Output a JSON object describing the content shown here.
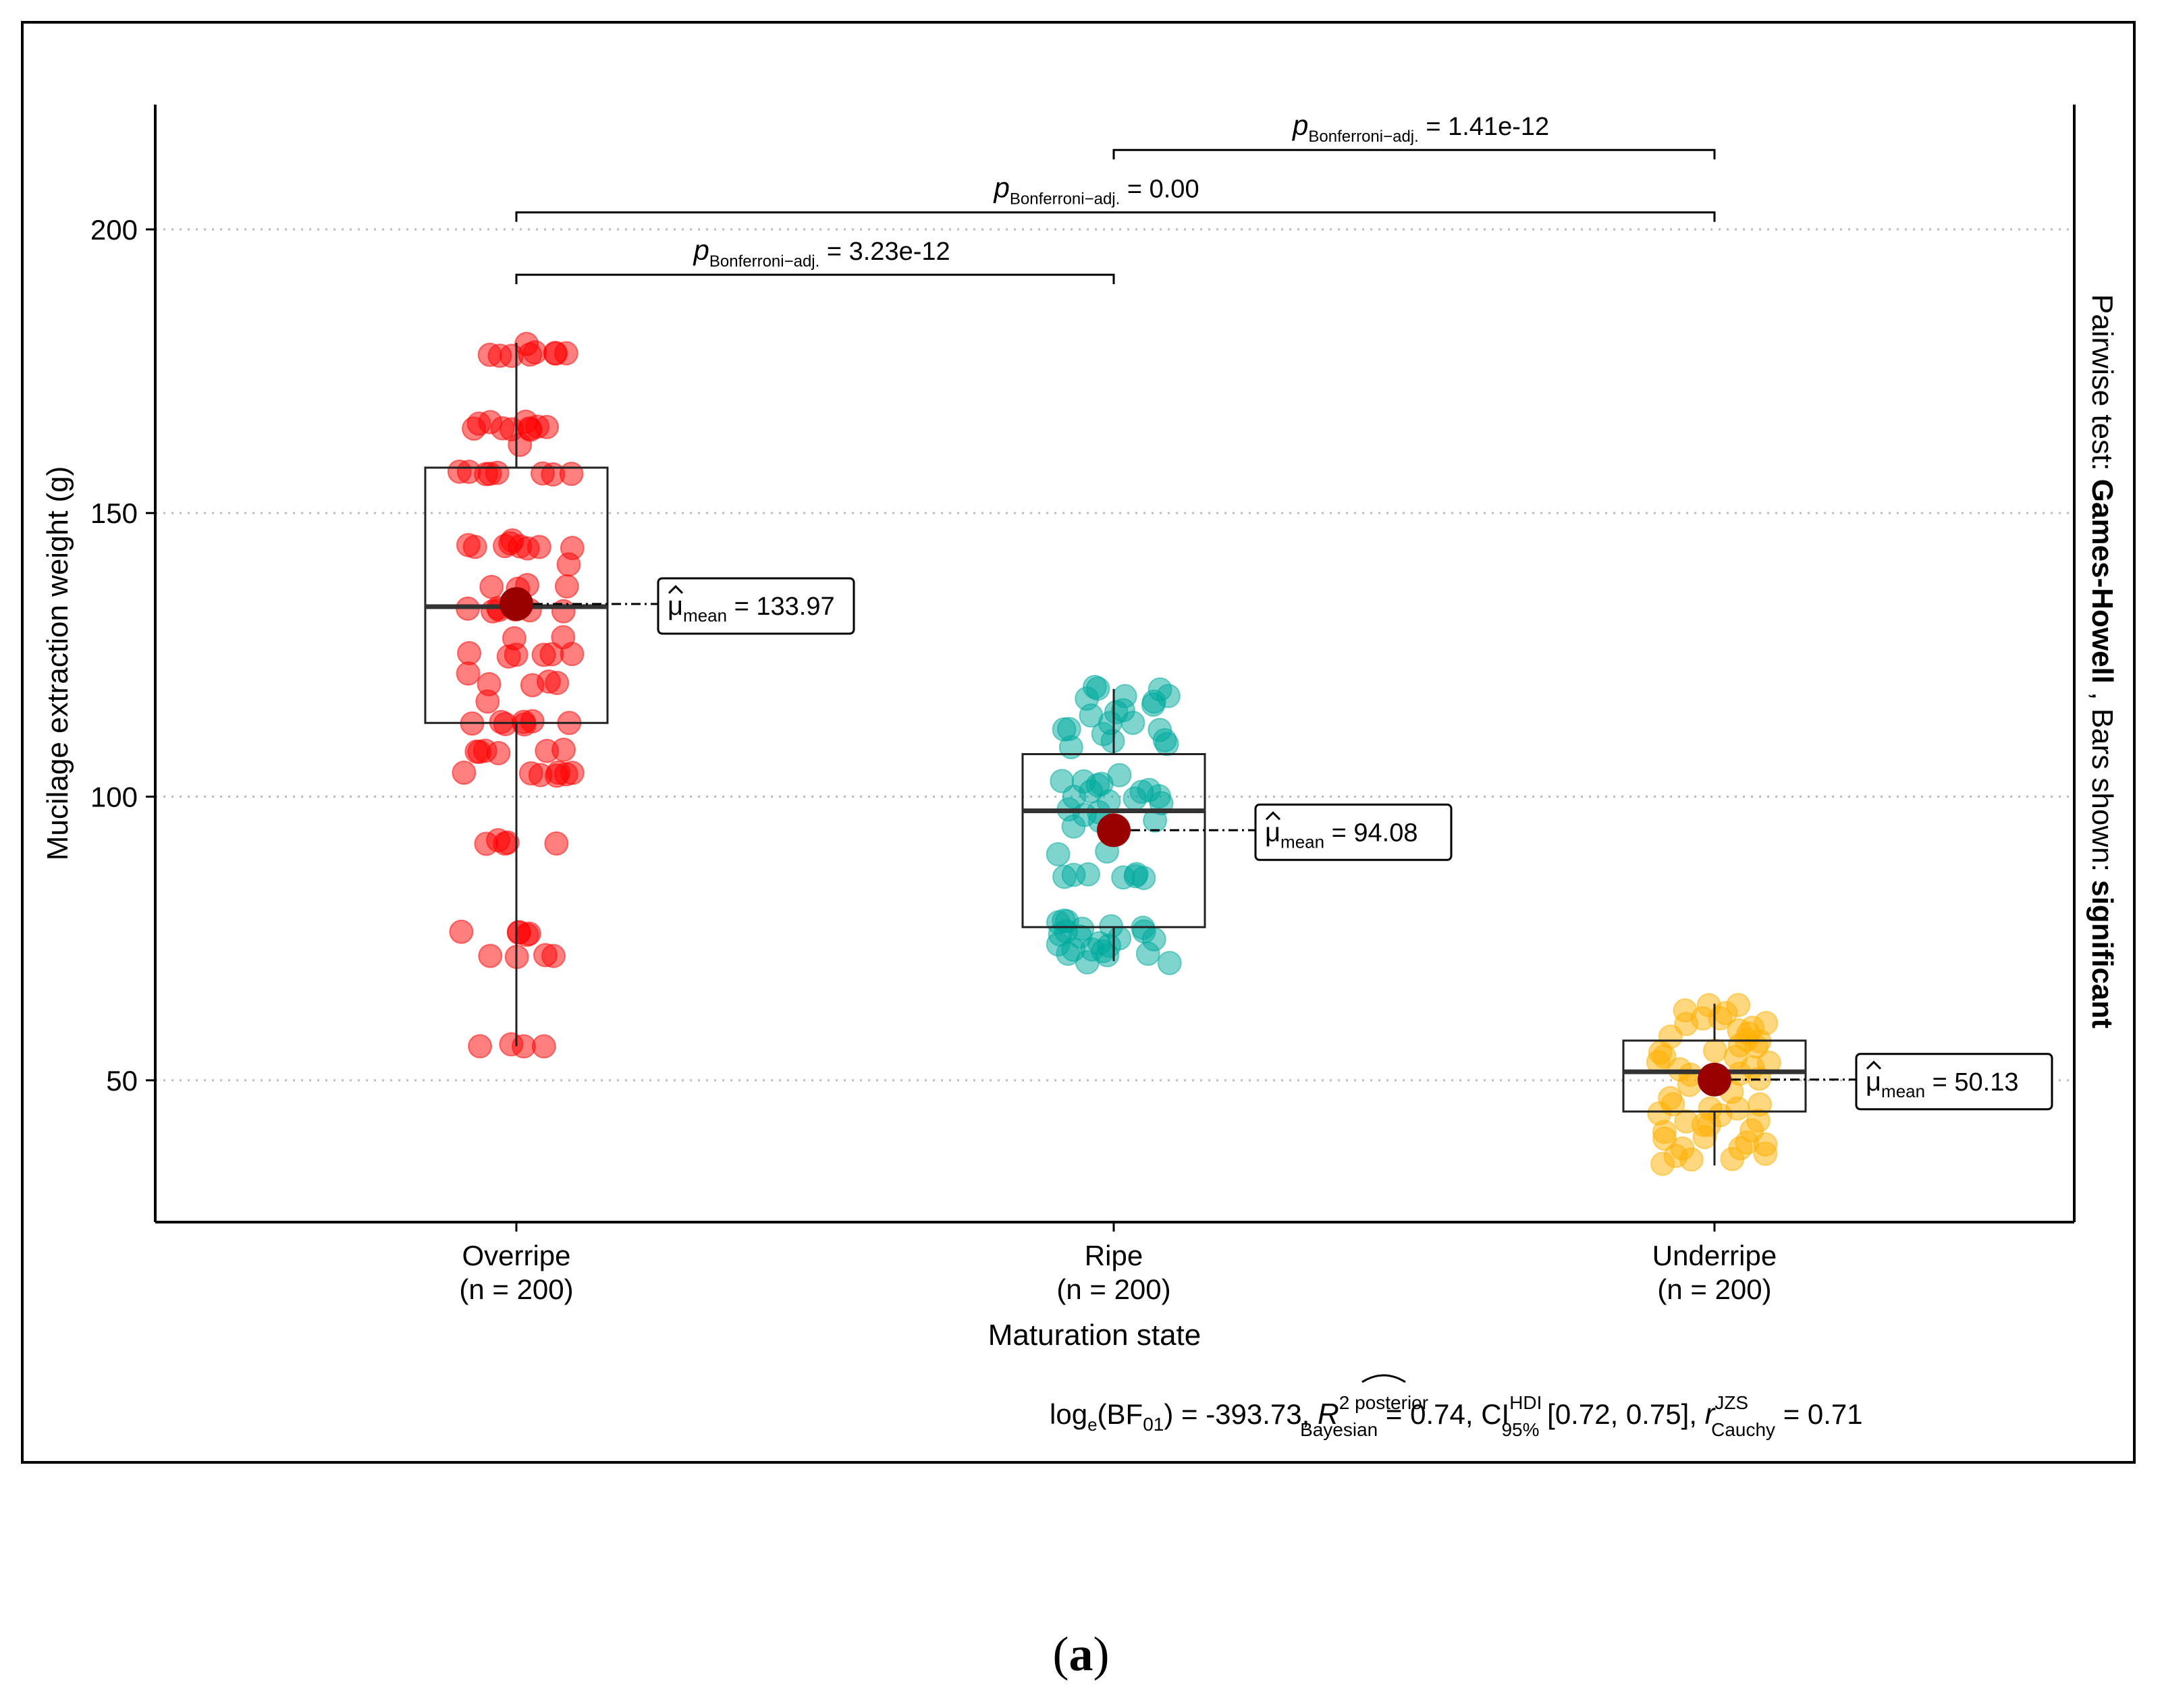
{
  "chart_data": {
    "type": "box-jitter",
    "xlabel": "Maturation state",
    "ylabel": "Mucilage extraction weight (g)",
    "ylim": [
      25,
      222
    ],
    "yticks": [
      50,
      100,
      150,
      200
    ],
    "grid": "horizontal-dotted",
    "categories": [
      {
        "name": "Overripe",
        "n_label": "(n = 200)",
        "color": "#ff0000",
        "box": {
          "min": 56,
          "q1": 113,
          "median": 133.5,
          "q3": 158,
          "max": 180
        },
        "mean": 133.97,
        "mean_label": "133.97",
        "points": [
          56,
          56,
          56,
          56,
          72,
          72,
          72,
          72,
          76,
          76,
          76,
          76,
          76,
          92,
          92,
          92,
          92,
          92,
          104,
          104,
          104,
          104,
          104,
          104,
          104,
          108,
          108,
          108,
          108,
          108,
          108,
          113,
          113,
          113,
          113,
          113,
          113,
          113,
          117,
          120,
          120,
          120,
          120,
          122,
          125,
          125,
          125,
          125,
          125,
          125,
          128,
          128,
          133,
          133,
          133,
          133,
          133,
          133,
          133,
          137,
          137,
          137,
          137,
          141,
          144,
          144,
          144,
          144,
          144,
          144,
          144,
          145,
          145,
          157,
          157,
          157,
          157,
          157,
          157,
          157,
          157,
          162,
          165,
          165,
          165,
          165,
          165,
          165,
          165,
          166,
          166,
          166,
          178,
          178,
          178,
          178,
          178,
          178,
          178,
          178,
          180
        ]
      },
      {
        "name": "Ripe",
        "n_label": "(n = 200)",
        "color": "#00a99d",
        "box": {
          "min": 71,
          "q1": 77,
          "median": 97.5,
          "q3": 107.5,
          "max": 119
        },
        "mean": 94.08,
        "mean_label": "94.08",
        "points": [
          71,
          71,
          72,
          72,
          72,
          73,
          73,
          73,
          74,
          74,
          74,
          75,
          75,
          75,
          76,
          76,
          76,
          77,
          77,
          77,
          78,
          78,
          78,
          86,
          86,
          86,
          86,
          86,
          86,
          86,
          90,
          90,
          95,
          96,
          96,
          97,
          97,
          98,
          99,
          99,
          100,
          100,
          100,
          101,
          101,
          101,
          102,
          102,
          103,
          103,
          104,
          109,
          109,
          110,
          110,
          111,
          112,
          112,
          112,
          113,
          113,
          114,
          115,
          115,
          116,
          117,
          117,
          118,
          118,
          119,
          119,
          119
        ]
      },
      {
        "name": "Underripe",
        "n_label": "(n = 200)",
        "color": "#ffb000",
        "box": {
          "min": 35,
          "q1": 44.5,
          "median": 51.5,
          "q3": 57,
          "max": 63.5
        },
        "mean": 50.13,
        "mean_label": "50.13",
        "points": [
          35,
          36,
          36,
          37,
          37,
          38,
          38,
          39,
          39,
          40,
          40,
          41,
          41,
          42,
          42,
          43,
          43,
          44,
          44,
          45,
          45,
          46,
          46,
          47,
          48,
          49,
          50,
          50,
          51,
          51,
          52,
          52,
          53,
          53,
          54,
          54,
          55,
          55,
          56,
          56,
          57,
          57,
          58,
          58,
          59,
          59,
          60,
          60,
          61,
          61,
          62,
          62,
          63,
          63
        ]
      }
    ],
    "mean_symbol": "μ",
    "mean_subscript": "mean",
    "mean_color": "#990000",
    "comparisons": [
      {
        "from": 0,
        "to": 1,
        "y": 192,
        "label_p": "p",
        "label_sub": "Bonferroni−adj.",
        "label_val": "= 3.23e-12"
      },
      {
        "from": 0,
        "to": 2,
        "y": 203,
        "label_p": "p",
        "label_sub": "Bonferroni−adj.",
        "label_val": "= 0.00"
      },
      {
        "from": 1,
        "to": 2,
        "y": 214,
        "label_p": "p",
        "label_sub": "Bonferroni−adj.",
        "label_val": "= 1.41e-12"
      }
    ],
    "right_label": {
      "prefix": "Pairwise test: ",
      "test": "Games-Howell",
      "middle": " , Bars shown: ",
      "bars": "significant"
    },
    "bayes": {
      "log": "log",
      "log_sub": "e",
      "bf": "(BF",
      "bf_sub": "01",
      "bf_val": ") = -393.73, ",
      "r": "R",
      "r_sup": "2 posterior",
      "r_sub": "Bayesian",
      "r_val": " = 0.74, ",
      "ci": "CI",
      "ci_sup": "HDI",
      "ci_sub": "95%",
      "ci_val": " [0.72, 0.75], ",
      "rc": "r",
      "rc_sup": "JZS",
      "rc_sub": "Cauchy",
      "rc_val": " = 0.71"
    }
  },
  "caption": {
    "open": "(",
    "letter": "a",
    "close": ")"
  }
}
